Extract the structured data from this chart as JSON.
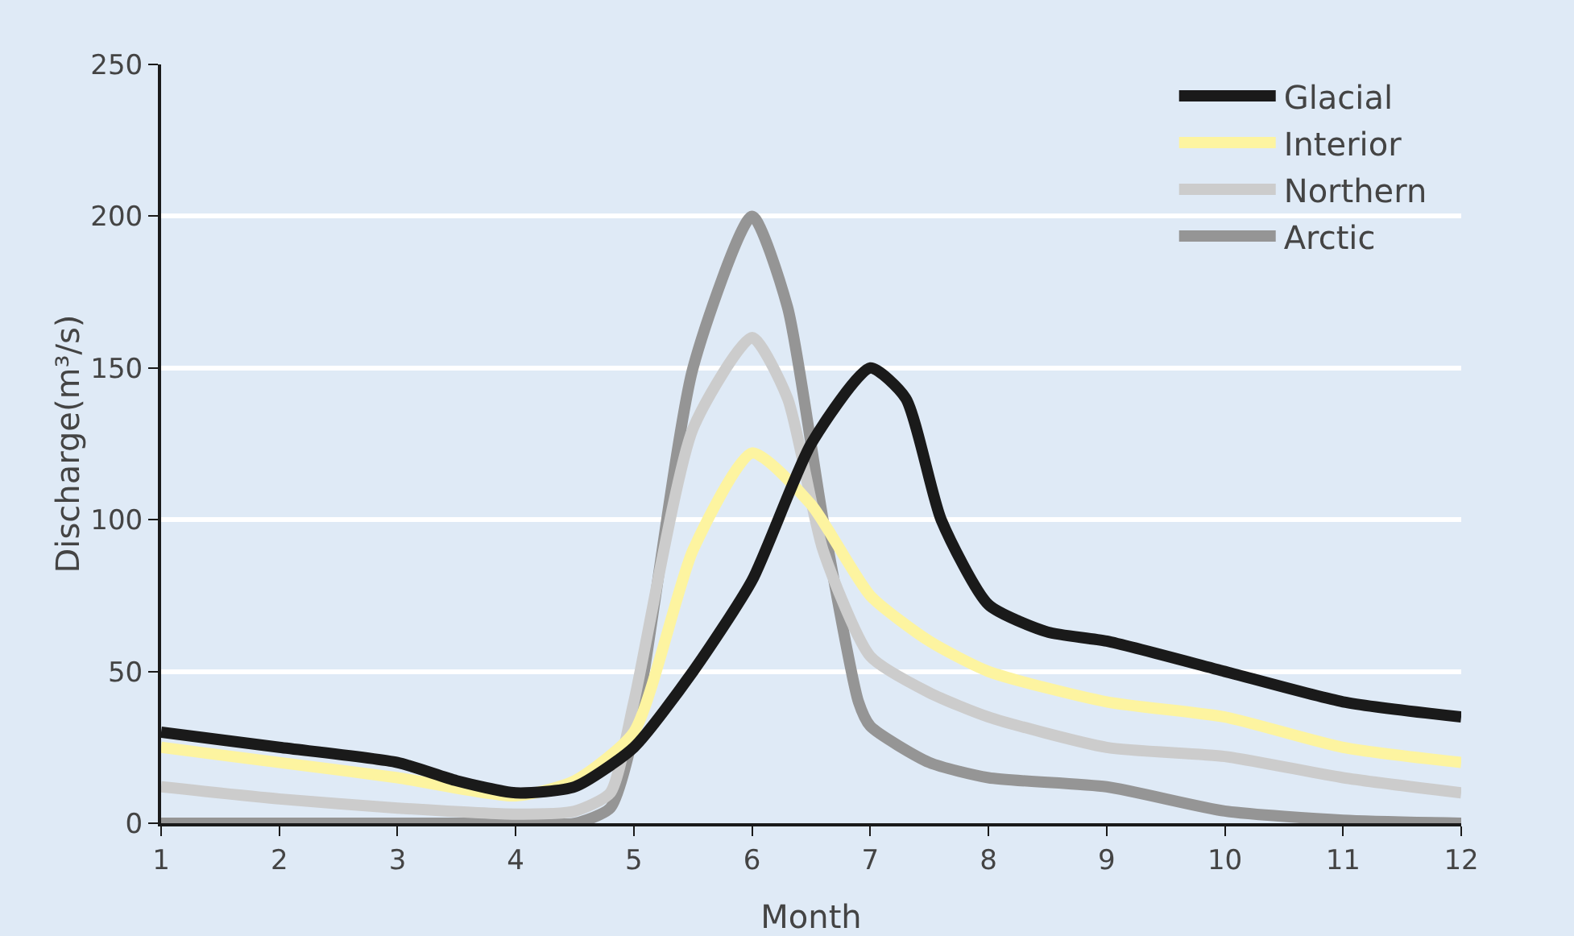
{
  "chart_data": {
    "type": "line",
    "xlabel": "Month",
    "ylabel": "Discharge(m³/s)",
    "xlim": [
      1,
      12
    ],
    "ylim": [
      0,
      250
    ],
    "xticks": [
      1,
      2,
      3,
      4,
      5,
      6,
      7,
      8,
      9,
      10,
      11,
      12
    ],
    "yticks": [
      0,
      50,
      100,
      150,
      200,
      250
    ],
    "grid": "y",
    "legend": "top right",
    "line_style": "solid",
    "marker": "none",
    "series": [
      {
        "name": "Glacial",
        "color": "#1a1a1a",
        "x": [
          1,
          2,
          3,
          3.5,
          4,
          4.5,
          5,
          5.5,
          6,
          6.5,
          7,
          7.3,
          7.6,
          8,
          8.5,
          9,
          10,
          11,
          12
        ],
        "values": [
          30,
          25,
          20,
          14,
          10,
          12,
          25,
          50,
          80,
          125,
          150,
          140,
          100,
          72,
          63,
          60,
          50,
          40,
          35
        ]
      },
      {
        "name": "Interior",
        "color": "#fdf4a0",
        "x": [
          1,
          2,
          3,
          4,
          4.5,
          5,
          5.5,
          6,
          6.5,
          7,
          7.5,
          8,
          9,
          10,
          11,
          12
        ],
        "values": [
          25,
          20,
          15,
          9,
          14,
          30,
          90,
          122,
          105,
          75,
          60,
          50,
          40,
          35,
          25,
          20
        ]
      },
      {
        "name": "Northern",
        "color": "#cccccc",
        "x": [
          1,
          2,
          3,
          4,
          4.5,
          4.8,
          5,
          5.5,
          6,
          6.3,
          6.6,
          7,
          7.5,
          8,
          9,
          10,
          11,
          12
        ],
        "values": [
          12,
          8,
          5,
          3,
          4,
          10,
          40,
          130,
          160,
          140,
          90,
          55,
          43,
          35,
          25,
          22,
          15,
          10
        ]
      },
      {
        "name": "Arctic",
        "color": "#959595",
        "x": [
          1,
          2,
          3,
          4,
          4.5,
          4.8,
          5,
          5.5,
          6,
          6.3,
          6.6,
          6.9,
          7,
          7.5,
          8,
          9,
          10,
          11,
          12
        ],
        "values": [
          0,
          0,
          0,
          0,
          0,
          5,
          30,
          150,
          200,
          170,
          100,
          40,
          32,
          20,
          15,
          12,
          4,
          1,
          0
        ]
      }
    ]
  }
}
